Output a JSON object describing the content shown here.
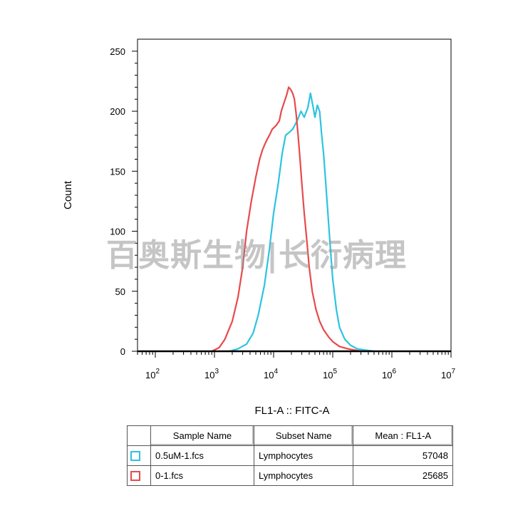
{
  "watermark": "百奥斯生物|长衍病理",
  "chart_data": {
    "type": "line",
    "xlabel": "FL1-A :: FITC-A",
    "ylabel": "Count",
    "x_scale": "log",
    "xlim": [
      50,
      10000000
    ],
    "ylim": [
      0,
      260
    ],
    "x_ticks": [
      {
        "value": 100,
        "base": "10",
        "exp": "2"
      },
      {
        "value": 1000,
        "base": "10",
        "exp": "3"
      },
      {
        "value": 10000,
        "base": "10",
        "exp": "4"
      },
      {
        "value": 100000,
        "base": "10",
        "exp": "5"
      },
      {
        "value": 1000000,
        "base": "10",
        "exp": "6"
      },
      {
        "value": 10000000,
        "base": "10",
        "exp": "7"
      }
    ],
    "y_ticks": [
      "0",
      "50",
      "100",
      "150",
      "200",
      "250"
    ],
    "series": [
      {
        "name": "0.5uM-1.fcs",
        "color": "#2ec3e0",
        "points": [
          [
            1800,
            0
          ],
          [
            2500,
            2
          ],
          [
            3500,
            6
          ],
          [
            4500,
            15
          ],
          [
            5500,
            30
          ],
          [
            7000,
            55
          ],
          [
            8500,
            85
          ],
          [
            10000,
            115
          ],
          [
            12000,
            140
          ],
          [
            14000,
            165
          ],
          [
            16000,
            180
          ],
          [
            18000,
            182
          ],
          [
            21000,
            185
          ],
          [
            25000,
            192
          ],
          [
            29000,
            200
          ],
          [
            33000,
            195
          ],
          [
            38000,
            203
          ],
          [
            42000,
            215
          ],
          [
            46000,
            205
          ],
          [
            50000,
            195
          ],
          [
            55000,
            205
          ],
          [
            60000,
            200
          ],
          [
            65000,
            180
          ],
          [
            70000,
            165
          ],
          [
            75000,
            145
          ],
          [
            80000,
            125
          ],
          [
            90000,
            90
          ],
          [
            100000,
            60
          ],
          [
            115000,
            35
          ],
          [
            130000,
            20
          ],
          [
            160000,
            10
          ],
          [
            200000,
            5
          ],
          [
            260000,
            2
          ],
          [
            350000,
            1
          ],
          [
            500000,
            0
          ]
        ]
      },
      {
        "name": "0-1.fcs",
        "color": "#e84a4a",
        "points": [
          [
            900,
            0
          ],
          [
            1200,
            3
          ],
          [
            1500,
            10
          ],
          [
            2000,
            25
          ],
          [
            2500,
            45
          ],
          [
            3000,
            70
          ],
          [
            3500,
            100
          ],
          [
            4200,
            125
          ],
          [
            5000,
            145
          ],
          [
            5800,
            160
          ],
          [
            6500,
            168
          ],
          [
            7500,
            175
          ],
          [
            8500,
            180
          ],
          [
            9500,
            185
          ],
          [
            11000,
            188
          ],
          [
            12500,
            192
          ],
          [
            13500,
            200
          ],
          [
            15000,
            207
          ],
          [
            16500,
            213
          ],
          [
            18000,
            220
          ],
          [
            19500,
            218
          ],
          [
            21000,
            215
          ],
          [
            22500,
            210
          ],
          [
            24000,
            198
          ],
          [
            26000,
            180
          ],
          [
            28000,
            160
          ],
          [
            30000,
            140
          ],
          [
            33000,
            115
          ],
          [
            36000,
            95
          ],
          [
            40000,
            70
          ],
          [
            45000,
            50
          ],
          [
            52000,
            35
          ],
          [
            60000,
            25
          ],
          [
            70000,
            18
          ],
          [
            85000,
            12
          ],
          [
            100000,
            8
          ],
          [
            130000,
            4
          ],
          [
            180000,
            2
          ],
          [
            300000,
            0
          ]
        ]
      }
    ],
    "table": {
      "headers": [
        "Sample Name",
        "Subset Name",
        "Mean : FL1-A"
      ],
      "rows": [
        {
          "sample": "0.5uM-1.fcs",
          "subset": "Lymphocytes",
          "mean": "57048",
          "color": "#2ec3e0"
        },
        {
          "sample": "0-1.fcs",
          "subset": "Lymphocytes",
          "mean": "25685",
          "color": "#e84a4a"
        }
      ]
    }
  }
}
